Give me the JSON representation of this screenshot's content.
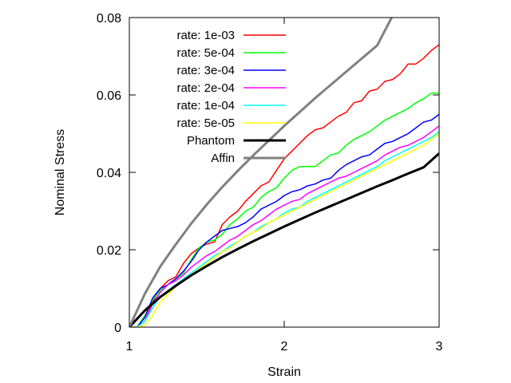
{
  "chart_data": {
    "type": "line",
    "title": "",
    "xlabel": "Strain",
    "ylabel": "Nominal Stress",
    "xlim": [
      1,
      3
    ],
    "ylim": [
      0,
      0.08
    ],
    "xticks": [
      "1",
      "2",
      "3"
    ],
    "xtick_values": [
      1,
      2,
      3
    ],
    "yticks": [
      "0",
      "0.02",
      "0.04",
      "0.06",
      "0.08"
    ],
    "ytick_values": [
      0,
      0.02,
      0.04,
      0.06,
      0.08
    ],
    "grid": false,
    "legend_position": "top-left",
    "series": [
      {
        "name": "rate: 1e-03",
        "color": "#ff0000",
        "x": [
          1.0,
          1.05,
          1.1,
          1.15,
          1.2,
          1.25,
          1.3,
          1.35,
          1.4,
          1.45,
          1.5,
          1.55,
          1.6,
          1.65,
          1.7,
          1.75,
          1.8,
          1.85,
          1.9,
          1.95,
          2.0,
          2.05,
          2.1,
          2.15,
          2.2,
          2.25,
          2.3,
          2.35,
          2.4,
          2.45,
          2.5,
          2.55,
          2.6,
          2.65,
          2.7,
          2.75,
          2.8,
          2.85,
          2.9,
          2.95,
          3.0
        ],
        "y": [
          0.0,
          0.0,
          0.0015,
          0.0065,
          0.01,
          0.012,
          0.013,
          0.0165,
          0.019,
          0.0205,
          0.0215,
          0.022,
          0.0265,
          0.0285,
          0.03,
          0.0325,
          0.0345,
          0.0365,
          0.0375,
          0.0405,
          0.0435,
          0.0455,
          0.0475,
          0.0495,
          0.051,
          0.0515,
          0.053,
          0.0545,
          0.0555,
          0.058,
          0.0585,
          0.061,
          0.0615,
          0.0635,
          0.064,
          0.0655,
          0.068,
          0.068,
          0.0695,
          0.0715,
          0.073
        ]
      },
      {
        "name": "rate: 5e-04",
        "color": "#00ff00",
        "x": [
          1.0,
          1.05,
          1.1,
          1.15,
          1.2,
          1.25,
          1.3,
          1.35,
          1.4,
          1.45,
          1.5,
          1.55,
          1.6,
          1.65,
          1.7,
          1.75,
          1.8,
          1.85,
          1.9,
          1.95,
          2.0,
          2.05,
          2.1,
          2.15,
          2.2,
          2.25,
          2.3,
          2.35,
          2.4,
          2.45,
          2.5,
          2.55,
          2.6,
          2.65,
          2.7,
          2.75,
          2.8,
          2.85,
          2.9,
          2.95,
          3.0
        ],
        "y": [
          0.0,
          0.0,
          0.003,
          0.007,
          0.0095,
          0.011,
          0.0125,
          0.014,
          0.0175,
          0.0205,
          0.022,
          0.0225,
          0.024,
          0.0265,
          0.028,
          0.03,
          0.031,
          0.0335,
          0.035,
          0.036,
          0.0385,
          0.0405,
          0.0415,
          0.0415,
          0.0415,
          0.043,
          0.0445,
          0.045,
          0.047,
          0.0485,
          0.0495,
          0.0505,
          0.052,
          0.0535,
          0.0545,
          0.0555,
          0.0565,
          0.058,
          0.059,
          0.0605,
          0.0605
        ]
      },
      {
        "name": "rate: 3e-04",
        "color": "#0000ff",
        "x": [
          1.0,
          1.05,
          1.1,
          1.15,
          1.2,
          1.25,
          1.3,
          1.35,
          1.4,
          1.45,
          1.5,
          1.55,
          1.6,
          1.65,
          1.7,
          1.75,
          1.8,
          1.85,
          1.9,
          1.95,
          2.0,
          2.05,
          2.1,
          2.15,
          2.2,
          2.25,
          2.3,
          2.35,
          2.4,
          2.45,
          2.5,
          2.55,
          2.6,
          2.65,
          2.7,
          2.75,
          2.8,
          2.85,
          2.9,
          2.95,
          3.0
        ],
        "y": [
          0.0,
          0.0,
          0.0025,
          0.0075,
          0.01,
          0.011,
          0.0125,
          0.0145,
          0.017,
          0.02,
          0.022,
          0.0235,
          0.025,
          0.0255,
          0.026,
          0.027,
          0.0285,
          0.0305,
          0.0315,
          0.0325,
          0.034,
          0.035,
          0.0355,
          0.0365,
          0.037,
          0.038,
          0.0385,
          0.0405,
          0.042,
          0.043,
          0.044,
          0.0445,
          0.046,
          0.0475,
          0.048,
          0.049,
          0.05,
          0.0515,
          0.053,
          0.0535,
          0.055
        ]
      },
      {
        "name": "rate: 2e-04",
        "color": "#ff00ff",
        "x": [
          1.0,
          1.05,
          1.1,
          1.15,
          1.2,
          1.25,
          1.3,
          1.35,
          1.4,
          1.45,
          1.5,
          1.55,
          1.6,
          1.65,
          1.7,
          1.75,
          1.8,
          1.85,
          1.9,
          1.95,
          2.0,
          2.05,
          2.1,
          2.15,
          2.2,
          2.25,
          2.3,
          2.35,
          2.4,
          2.45,
          2.5,
          2.55,
          2.6,
          2.65,
          2.7,
          2.75,
          2.8,
          2.85,
          2.9,
          2.95,
          3.0
        ],
        "y": [
          0.0,
          0.0,
          0.0015,
          0.006,
          0.009,
          0.011,
          0.012,
          0.0135,
          0.0155,
          0.017,
          0.0185,
          0.0195,
          0.021,
          0.0225,
          0.0235,
          0.025,
          0.0265,
          0.0275,
          0.029,
          0.0305,
          0.0315,
          0.0325,
          0.033,
          0.0345,
          0.0355,
          0.0365,
          0.0375,
          0.0385,
          0.039,
          0.04,
          0.041,
          0.042,
          0.043,
          0.0445,
          0.0455,
          0.0465,
          0.047,
          0.048,
          0.049,
          0.0505,
          0.052
        ]
      },
      {
        "name": "rate: 1e-04",
        "color": "#00ffff",
        "x": [
          1.0,
          1.05,
          1.1,
          1.15,
          1.2,
          1.25,
          1.3,
          1.35,
          1.4,
          1.45,
          1.5,
          1.55,
          1.6,
          1.65,
          1.7,
          1.75,
          1.8,
          1.85,
          1.9,
          1.95,
          2.0,
          2.05,
          2.1,
          2.15,
          2.2,
          2.25,
          2.3,
          2.35,
          2.4,
          2.45,
          2.5,
          2.55,
          2.6,
          2.65,
          2.7,
          2.75,
          2.8,
          2.85,
          2.9,
          2.95,
          3.0
        ],
        "y": [
          0.0,
          0.0,
          0.0015,
          0.005,
          0.008,
          0.0095,
          0.011,
          0.0125,
          0.014,
          0.0155,
          0.017,
          0.0185,
          0.0195,
          0.021,
          0.022,
          0.0235,
          0.0245,
          0.026,
          0.027,
          0.028,
          0.0295,
          0.0305,
          0.031,
          0.0325,
          0.0335,
          0.0345,
          0.0355,
          0.0365,
          0.0375,
          0.0385,
          0.0395,
          0.0405,
          0.0415,
          0.043,
          0.044,
          0.045,
          0.046,
          0.047,
          0.048,
          0.049,
          0.0505
        ]
      },
      {
        "name": "rate: 5e-05",
        "color": "#ffff00",
        "x": [
          1.0,
          1.05,
          1.1,
          1.15,
          1.2,
          1.25,
          1.3,
          1.35,
          1.4,
          1.45,
          1.5,
          1.55,
          1.6,
          1.65,
          1.7,
          1.75,
          1.8,
          1.85,
          1.9,
          1.95,
          2.0,
          2.05,
          2.1,
          2.15,
          2.2,
          2.25,
          2.3,
          2.35,
          2.4,
          2.45,
          2.5,
          2.55,
          2.6,
          2.65,
          2.7,
          2.75,
          2.8,
          2.85,
          2.9,
          2.95,
          3.0
        ],
        "y": [
          0.0,
          0.0,
          0.0005,
          0.003,
          0.0065,
          0.0085,
          0.0105,
          0.012,
          0.0135,
          0.015,
          0.0165,
          0.018,
          0.0195,
          0.0205,
          0.022,
          0.0235,
          0.0245,
          0.0255,
          0.027,
          0.028,
          0.029,
          0.03,
          0.031,
          0.032,
          0.033,
          0.034,
          0.035,
          0.036,
          0.037,
          0.038,
          0.039,
          0.04,
          0.041,
          0.042,
          0.043,
          0.044,
          0.045,
          0.046,
          0.047,
          0.0485,
          0.05
        ]
      },
      {
        "name": "Phantom",
        "color": "#000000",
        "x": [
          1.0,
          1.1,
          1.2,
          1.3,
          1.4,
          1.5,
          1.6,
          1.7,
          1.8,
          1.9,
          2.0,
          2.1,
          2.2,
          2.3,
          2.4,
          2.5,
          2.6,
          2.7,
          2.8,
          2.9,
          3.0
        ],
        "y": [
          0.0,
          0.0043,
          0.0078,
          0.0107,
          0.0134,
          0.0158,
          0.0181,
          0.0202,
          0.0222,
          0.0241,
          0.026,
          0.0278,
          0.0296,
          0.0313,
          0.033,
          0.0347,
          0.0364,
          0.038,
          0.0397,
          0.0413,
          0.0449
        ]
      },
      {
        "name": "Affin",
        "color": "#808080",
        "x": [
          1.0,
          1.1,
          1.2,
          1.3,
          1.4,
          1.5,
          1.6,
          1.7,
          1.8,
          1.9,
          2.0,
          2.1,
          2.2,
          2.3,
          2.4,
          2.5,
          2.6,
          2.7
        ],
        "y": [
          0.0,
          0.0086,
          0.0157,
          0.0214,
          0.0268,
          0.0317,
          0.0362,
          0.0404,
          0.0444,
          0.0482,
          0.052,
          0.0556,
          0.0592,
          0.0626,
          0.066,
          0.0694,
          0.0728,
          0.0805
        ]
      }
    ]
  }
}
